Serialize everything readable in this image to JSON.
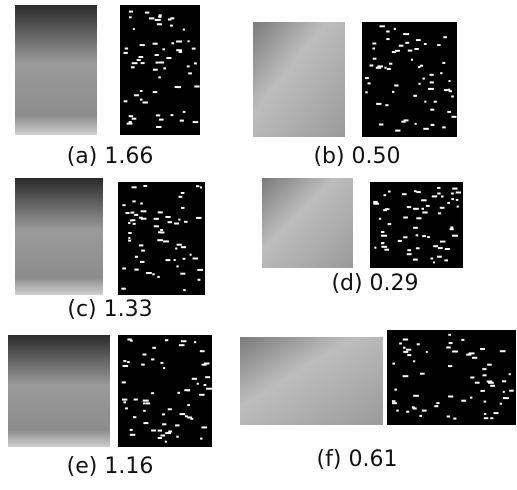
{
  "figure": {
    "panels": [
      {
        "caption": "(a) 1.66"
      },
      {
        "caption": "(b) 0.50"
      },
      {
        "caption": "(c) 1.33"
      },
      {
        "caption": "(d) 0.29"
      },
      {
        "caption": "(e) 1.16"
      },
      {
        "caption": "(f) 0.61"
      }
    ]
  }
}
